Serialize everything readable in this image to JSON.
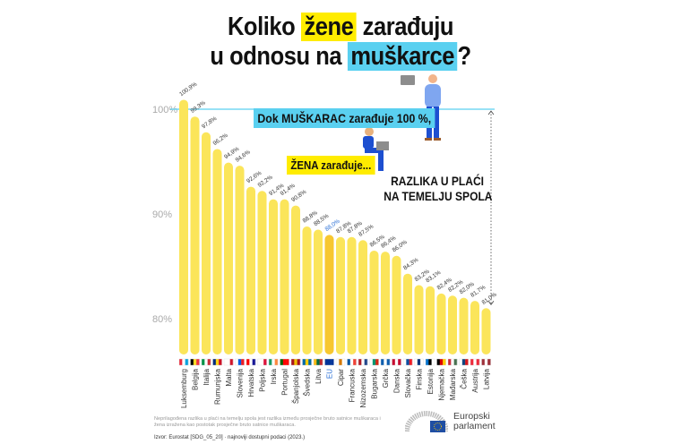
{
  "title": {
    "line1_pre": "Koliko",
    "line1_highlight": "žene",
    "line1_post": "zarađuju",
    "line2_pre": "u odnosu na",
    "line2_highlight": "muškarce",
    "line2_post": "?"
  },
  "annotations": {
    "men": "Dok MUŠKARAC zarađuje 100 %,",
    "women": "ŽENA zarađuje...",
    "gap_line1": "RAZLIKA U PLAĆI",
    "gap_line2": "NA TEMELJU SPOLA"
  },
  "footer": {
    "note": "Neprilagođena razlika u plaći na temelju spola jest razlika između prosječne bruto satnice muškaraca i žena izražena kao postotak prosječne bruto satnice muškaraca.",
    "source": "Izvor: Eurostat [SDG_05_20] · najnoviji dostupni podaci (2023.)",
    "logo_line1": "Europski",
    "logo_line2": "parlament"
  },
  "colors": {
    "bar": "#fbe55a",
    "bar_eu": "#f7c730",
    "eu_label": "#2a6fd6",
    "accent_cyan": "#5ad0f0",
    "accent_yellow": "#ffec00"
  },
  "chart_data": {
    "type": "bar",
    "title": "Koliko žene zarađuju u odnosu na muškarce?",
    "ylim": [
      77,
      101
    ],
    "yticks": [
      80,
      90,
      100
    ],
    "ytick_labels": [
      "80%",
      "90%",
      "100%"
    ],
    "grid": false,
    "reference_line": 100,
    "categories": [
      "Luksemburg",
      "Belgija",
      "Italija",
      "Rumunjska",
      "Malta",
      "Slovenija",
      "Hrvatska",
      "Poljska",
      "Irska",
      "Portugal",
      "Španjolska",
      "Švedska",
      "Litva",
      "EU",
      "Cipar",
      "Francuska",
      "Nizozemska",
      "Bugarska",
      "Grčka",
      "Danska",
      "Slovačka",
      "Finska",
      "Estonija",
      "Njemačka",
      "Mađarska",
      "Češka",
      "Austrija",
      "Latvija"
    ],
    "values": [
      100.9,
      99.3,
      97.8,
      96.2,
      94.9,
      94.6,
      92.6,
      92.2,
      91.4,
      91.4,
      90.8,
      88.8,
      88.5,
      88.0,
      87.8,
      87.8,
      87.5,
      86.5,
      86.4,
      86.0,
      84.3,
      83.2,
      83.1,
      82.4,
      82.2,
      82.0,
      81.7,
      81.0
    ],
    "value_labels": [
      "100,9%",
      "99,3%",
      "97,8%",
      "96,2%",
      "94,9%",
      "94,6%",
      "92,6%",
      "92,2%",
      "91,4%",
      "91,4%",
      "90,8%",
      "88,8%",
      "88,5%",
      "88,0%",
      "87,8%",
      "87,8%",
      "87,5%",
      "86,5%",
      "86,4%",
      "86,0%",
      "84,3%",
      "83,2%",
      "83,1%",
      "82,4%",
      "82,2%",
      "82,0%",
      "81,7%",
      "81,0%"
    ],
    "highlight": "EU"
  },
  "flags": [
    [
      "#ed2939",
      "#fff",
      "#00a1de"
    ],
    [
      "#000",
      "#fdda24",
      "#ef3340"
    ],
    [
      "#009246",
      "#fff",
      "#ce2b37"
    ],
    [
      "#002b7f",
      "#fcd116",
      "#ce1126"
    ],
    [
      "#fff",
      "#fff",
      "#cf142b"
    ],
    [
      "#fff",
      "#005ce5",
      "#ed1c24"
    ],
    [
      "#ff0000",
      "#fff",
      "#171796"
    ],
    [
      "#fff",
      "#fff",
      "#dc143c"
    ],
    [
      "#169b62",
      "#fff",
      "#ff883e"
    ],
    [
      "#006600",
      "#ff0000",
      "#ff0000"
    ],
    [
      "#aa151b",
      "#f1bf00",
      "#aa151b"
    ],
    [
      "#006aa7",
      "#fecc00",
      "#006aa7"
    ],
    [
      "#fdb913",
      "#006a44",
      "#c1272d"
    ],
    [
      "#003399",
      "#003399",
      "#003399"
    ],
    [
      "#fff",
      "#d57800",
      "#fff"
    ],
    [
      "#0055a4",
      "#fff",
      "#ef4135"
    ],
    [
      "#ae1c28",
      "#fff",
      "#21468b"
    ],
    [
      "#fff",
      "#00966e",
      "#d62612"
    ],
    [
      "#0d5eaf",
      "#fff",
      "#0d5eaf"
    ],
    [
      "#c60c30",
      "#fff",
      "#c60c30"
    ],
    [
      "#fff",
      "#0b4ea2",
      "#ee1c25"
    ],
    [
      "#fff",
      "#003580",
      "#fff"
    ],
    [
      "#0072ce",
      "#000",
      "#fff"
    ],
    [
      "#000",
      "#dd0000",
      "#ffce00"
    ],
    [
      "#ce2939",
      "#fff",
      "#477050"
    ],
    [
      "#fff",
      "#11457e",
      "#d7141a"
    ],
    [
      "#ed2939",
      "#fff",
      "#ed2939"
    ],
    [
      "#9e3039",
      "#fff",
      "#9e3039"
    ]
  ]
}
